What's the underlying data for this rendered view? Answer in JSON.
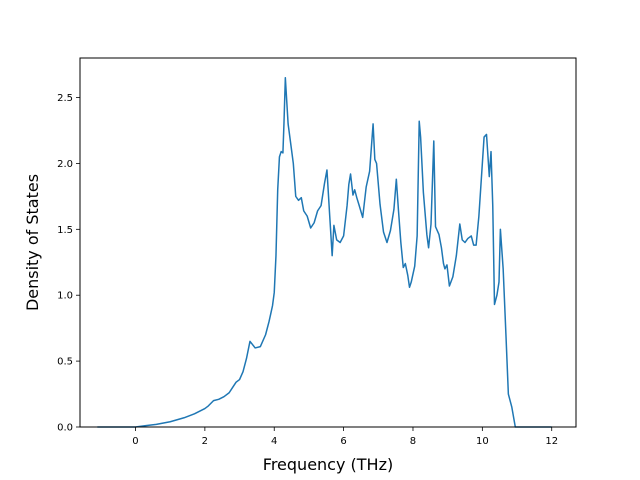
{
  "chart_data": {
    "type": "line",
    "title": "",
    "xlabel": "Frequency (THz)",
    "ylabel": "Density of States",
    "xlim": [
      -1.6,
      12.7
    ],
    "ylim": [
      0,
      2.8
    ],
    "xticks": [
      0,
      2,
      4,
      6,
      8,
      10,
      12
    ],
    "xtick_labels": [
      "0",
      "2",
      "4",
      "6",
      "8",
      "10",
      "12"
    ],
    "yticks": [
      0.0,
      0.5,
      1.0,
      1.5,
      2.0,
      2.5
    ],
    "ytick_labels": [
      "0.0",
      "0.5",
      "1.0",
      "1.5",
      "2.0",
      "2.5"
    ],
    "grid": false,
    "legend": false,
    "series": [
      {
        "color": "#1f77b4",
        "x": [
          -1.1,
          -0.5,
          0.0,
          0.3,
          0.6,
          1.0,
          1.4,
          1.7,
          2.0,
          2.1,
          2.25,
          2.4,
          2.55,
          2.7,
          2.8,
          2.9,
          3.0,
          3.1,
          3.2,
          3.3,
          3.45,
          3.6,
          3.75,
          3.85,
          3.9,
          3.95,
          4.0,
          4.05,
          4.1,
          4.15,
          4.2,
          4.25,
          4.28,
          4.32,
          4.4,
          4.5,
          4.55,
          4.62,
          4.7,
          4.78,
          4.85,
          4.95,
          5.05,
          5.15,
          5.25,
          5.35,
          5.45,
          5.52,
          5.6,
          5.67,
          5.72,
          5.8,
          5.9,
          6.0,
          6.1,
          6.15,
          6.2,
          6.27,
          6.32,
          6.38,
          6.45,
          6.55,
          6.65,
          6.75,
          6.85,
          6.9,
          6.95,
          7.05,
          7.15,
          7.25,
          7.35,
          7.45,
          7.52,
          7.58,
          7.65,
          7.72,
          7.78,
          7.85,
          7.9,
          7.95,
          8.05,
          8.12,
          8.18,
          8.22,
          8.3,
          8.4,
          8.45,
          8.52,
          8.6,
          8.65,
          8.75,
          8.82,
          8.88,
          8.92,
          8.98,
          9.05,
          9.15,
          9.25,
          9.35,
          9.42,
          9.5,
          9.58,
          9.68,
          9.75,
          9.82,
          9.9,
          10.0,
          10.05,
          10.12,
          10.2,
          10.25,
          10.3,
          10.35,
          10.42,
          10.48,
          10.52,
          10.6,
          10.68,
          10.75,
          10.85,
          10.95,
          11.5,
          12.0
        ],
        "values": [
          0.0,
          0.0,
          0.0,
          0.01,
          0.02,
          0.04,
          0.07,
          0.1,
          0.14,
          0.16,
          0.2,
          0.21,
          0.23,
          0.26,
          0.3,
          0.34,
          0.36,
          0.42,
          0.52,
          0.65,
          0.6,
          0.61,
          0.7,
          0.8,
          0.86,
          0.92,
          1.02,
          1.3,
          1.8,
          2.05,
          2.09,
          2.08,
          2.3,
          2.65,
          2.3,
          2.1,
          2.0,
          1.75,
          1.72,
          1.74,
          1.64,
          1.6,
          1.51,
          1.55,
          1.64,
          1.68,
          1.85,
          1.95,
          1.6,
          1.3,
          1.53,
          1.42,
          1.4,
          1.45,
          1.68,
          1.84,
          1.92,
          1.76,
          1.8,
          1.74,
          1.68,
          1.59,
          1.82,
          1.94,
          2.3,
          2.03,
          2.0,
          1.69,
          1.48,
          1.4,
          1.49,
          1.65,
          1.88,
          1.65,
          1.4,
          1.21,
          1.24,
          1.15,
          1.06,
          1.1,
          1.22,
          1.45,
          2.32,
          2.2,
          1.78,
          1.46,
          1.36,
          1.54,
          2.17,
          1.52,
          1.46,
          1.36,
          1.24,
          1.2,
          1.23,
          1.07,
          1.14,
          1.3,
          1.54,
          1.42,
          1.4,
          1.43,
          1.45,
          1.38,
          1.38,
          1.6,
          2.0,
          2.2,
          2.22,
          1.9,
          2.09,
          1.68,
          0.93,
          1.0,
          1.1,
          1.5,
          1.2,
          0.7,
          0.25,
          0.15,
          0.0,
          0.0,
          0.0
        ]
      }
    ]
  }
}
